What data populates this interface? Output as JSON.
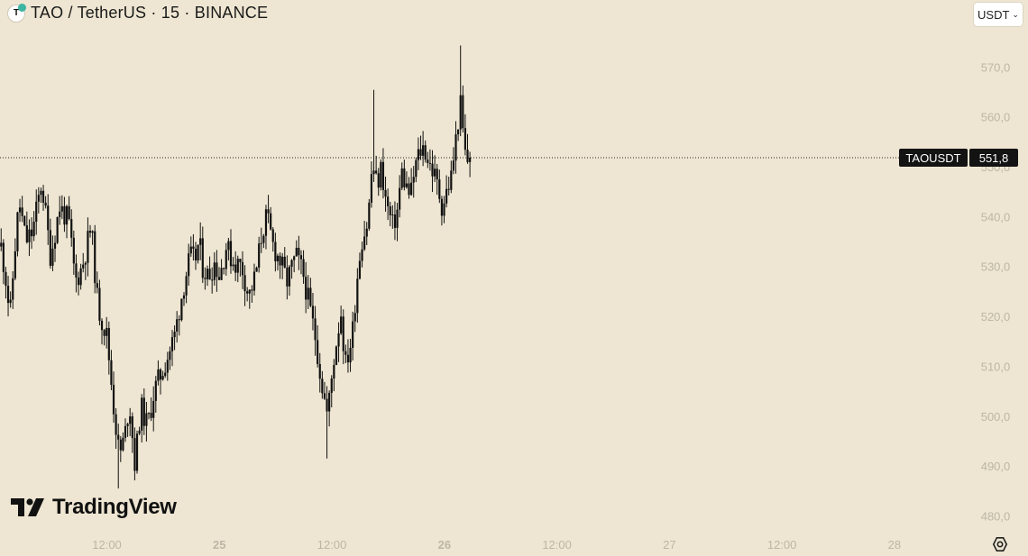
{
  "header": {
    "logo_letter": "T",
    "title": "TAO / TetherUS · 15 · BINANCE"
  },
  "currency_selector": {
    "label": "USDT",
    "chevron": "chevron-down-icon"
  },
  "brand": {
    "name": "TradingView"
  },
  "price_tag": {
    "symbol": "TAOUSDT",
    "price": "551,8"
  },
  "colors": {
    "background": "#eee6d2",
    "candle": "#111111",
    "axis_text": "#bdb6a4",
    "price_tag_bg": "#131313"
  },
  "chart_data": {
    "type": "candlestick",
    "symbol": "TAOUSDT",
    "interval": "15",
    "exchange": "BINANCE",
    "y_ticks": [
      "570,0",
      "560,0",
      "550,0",
      "540,0",
      "530,0",
      "520,0",
      "510,0",
      "500,0",
      "490,0",
      "480,0"
    ],
    "y_tick_values": [
      570,
      560,
      550,
      540,
      530,
      520,
      510,
      500,
      490,
      480
    ],
    "ylim": [
      477.2,
      578.0
    ],
    "x_ticks": [
      "12:00",
      "25",
      "12:00",
      "26",
      "12:00",
      "27",
      "12:00",
      "28"
    ],
    "x_tick_values": [
      0.5,
      1,
      1.5,
      2,
      2.5,
      3,
      3.5,
      4
    ],
    "x_tick_bold": [
      false,
      true,
      false,
      true,
      false,
      false,
      false,
      false
    ],
    "xlim": [
      0.025,
      4.321
    ],
    "last_price": 551.8,
    "anchors": [
      [
        0.03,
        534
      ],
      [
        0.05,
        528
      ],
      [
        0.07,
        520
      ],
      [
        0.09,
        533
      ],
      [
        0.11,
        543
      ],
      [
        0.14,
        535
      ],
      [
        0.17,
        537
      ],
      [
        0.21,
        547
      ],
      [
        0.25,
        532
      ],
      [
        0.29,
        542
      ],
      [
        0.33,
        539
      ],
      [
        0.36,
        527
      ],
      [
        0.39,
        530
      ],
      [
        0.43,
        538
      ],
      [
        0.46,
        522
      ],
      [
        0.5,
        516
      ],
      [
        0.53,
        502
      ],
      [
        0.555,
        492
      ],
      [
        0.58,
        496
      ],
      [
        0.6,
        503
      ],
      [
        0.625,
        490
      ],
      [
        0.65,
        502
      ],
      [
        0.68,
        498
      ],
      [
        0.71,
        505
      ],
      [
        0.745,
        509
      ],
      [
        0.77,
        512
      ],
      [
        0.8,
        516
      ],
      [
        0.84,
        526
      ],
      [
        0.87,
        532
      ],
      [
        0.89,
        531
      ],
      [
        0.91,
        535
      ],
      [
        0.925,
        530
      ],
      [
        0.95,
        528
      ],
      [
        0.98,
        531
      ],
      [
        1.0,
        528
      ],
      [
        1.03,
        534
      ],
      [
        1.06,
        531
      ],
      [
        1.1,
        530
      ],
      [
        1.13,
        524
      ],
      [
        1.16,
        528
      ],
      [
        1.19,
        537
      ],
      [
        1.21,
        540
      ],
      [
        1.24,
        534
      ],
      [
        1.27,
        531
      ],
      [
        1.3,
        527
      ],
      [
        1.34,
        532
      ],
      [
        1.37,
        529
      ],
      [
        1.4,
        522
      ],
      [
        1.43,
        515
      ],
      [
        1.45,
        508
      ],
      [
        1.48,
        500
      ],
      [
        1.51,
        512
      ],
      [
        1.54,
        521
      ],
      [
        1.56,
        510
      ],
      [
        1.59,
        516
      ],
      [
        1.61,
        527
      ],
      [
        1.63,
        535
      ],
      [
        1.66,
        539
      ],
      [
        1.68,
        551
      ],
      [
        1.7,
        546
      ],
      [
        1.72,
        550
      ],
      [
        1.74,
        543
      ],
      [
        1.77,
        538
      ],
      [
        1.79,
        541
      ],
      [
        1.81,
        549
      ],
      [
        1.83,
        546
      ],
      [
        1.85,
        544
      ],
      [
        1.87,
        550
      ],
      [
        1.89,
        553
      ],
      [
        1.91,
        554
      ],
      [
        1.93,
        551
      ],
      [
        1.95,
        549
      ],
      [
        1.97,
        546
      ],
      [
        1.99,
        542
      ],
      [
        2.01,
        545
      ],
      [
        2.03,
        548
      ],
      [
        2.05,
        555
      ],
      [
        2.07,
        563
      ],
      [
        2.08,
        558
      ],
      [
        2.09,
        553
      ],
      [
        2.1,
        551
      ],
      [
        2.11,
        552
      ]
    ]
  }
}
